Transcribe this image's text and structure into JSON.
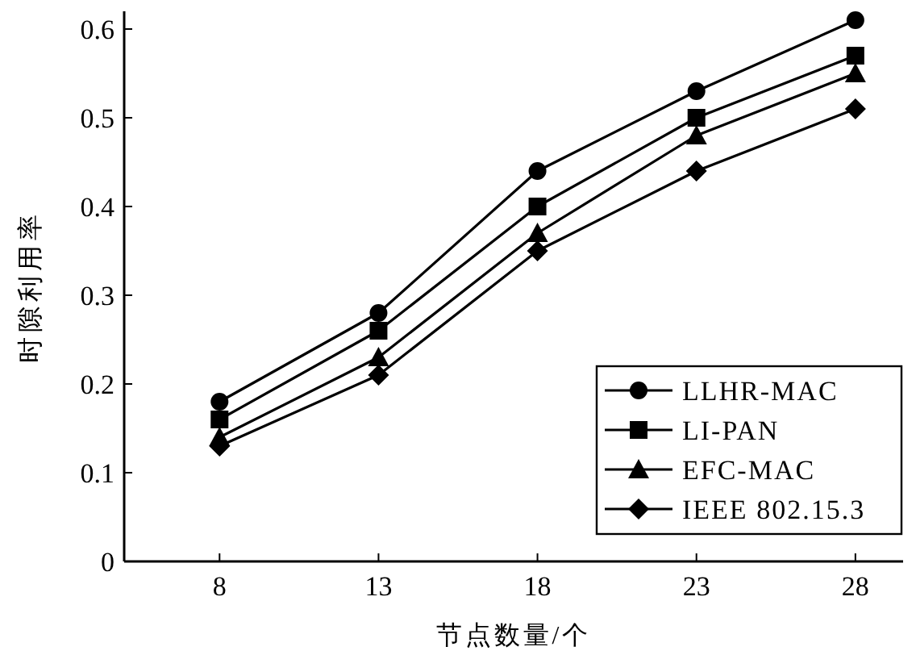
{
  "chart_data": {
    "type": "line",
    "xlabel": "节点数量/个",
    "ylabel": "时隙利用率",
    "x": [
      8,
      13,
      18,
      23,
      28
    ],
    "xlim": [
      5,
      29.5
    ],
    "xticks": [
      8,
      13,
      18,
      23,
      28
    ],
    "ylim": [
      0,
      0.62
    ],
    "yticks": [
      0,
      0.1,
      0.2,
      0.3,
      0.4,
      0.5,
      0.6
    ],
    "legend": "bottom right",
    "grid": false,
    "line_style": "solid",
    "series": [
      {
        "name": "LLHR-MAC",
        "color": "#000000",
        "marker": "circle",
        "values": [
          0.18,
          0.28,
          0.44,
          0.53,
          0.61
        ]
      },
      {
        "name": "LI-PAN",
        "color": "#000000",
        "marker": "square",
        "values": [
          0.16,
          0.26,
          0.4,
          0.5,
          0.57
        ]
      },
      {
        "name": "EFC-MAC",
        "color": "#000000",
        "marker": "triangle",
        "values": [
          0.14,
          0.23,
          0.37,
          0.48,
          0.55
        ]
      },
      {
        "name": "IEEE 802.15.3",
        "color": "#000000",
        "marker": "diamond",
        "values": [
          0.13,
          0.21,
          0.35,
          0.44,
          0.51
        ]
      }
    ]
  }
}
